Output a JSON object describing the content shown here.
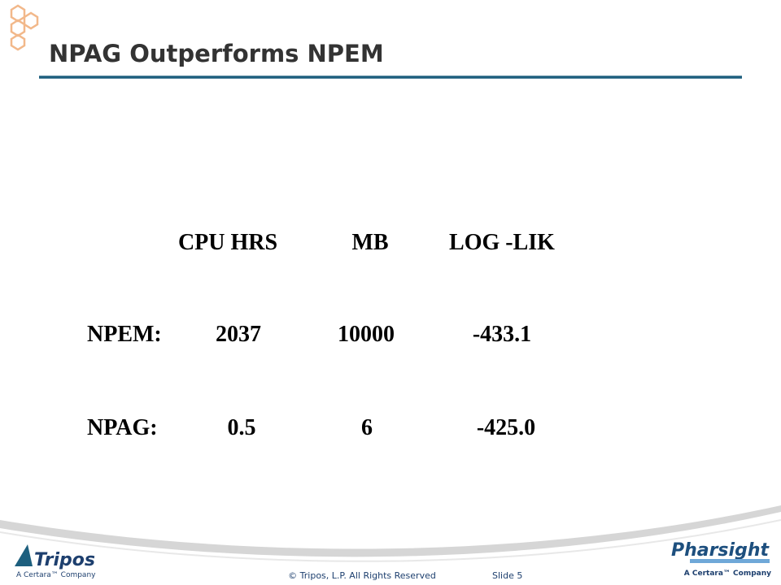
{
  "header": {
    "title": "NPAG Outperforms NPEM"
  },
  "table": {
    "columns": [
      "CPU HRS",
      "MB",
      "LOG -LIK"
    ],
    "rows": [
      [
        "NPEM:",
        "2037",
        "10000",
        "-433.1"
      ],
      [
        "NPAG:",
        "0.5",
        "6",
        "-425.0"
      ]
    ]
  },
  "footer": {
    "copyright": "© Tripos, L.P. All Rights Reserved",
    "slide": "Slide 5",
    "left_logo": {
      "name": "Tripos",
      "tagline": "A Certara™ Company"
    },
    "right_logo": {
      "name": "Pharsight",
      "tagline": "A Certara™ Company"
    }
  }
}
